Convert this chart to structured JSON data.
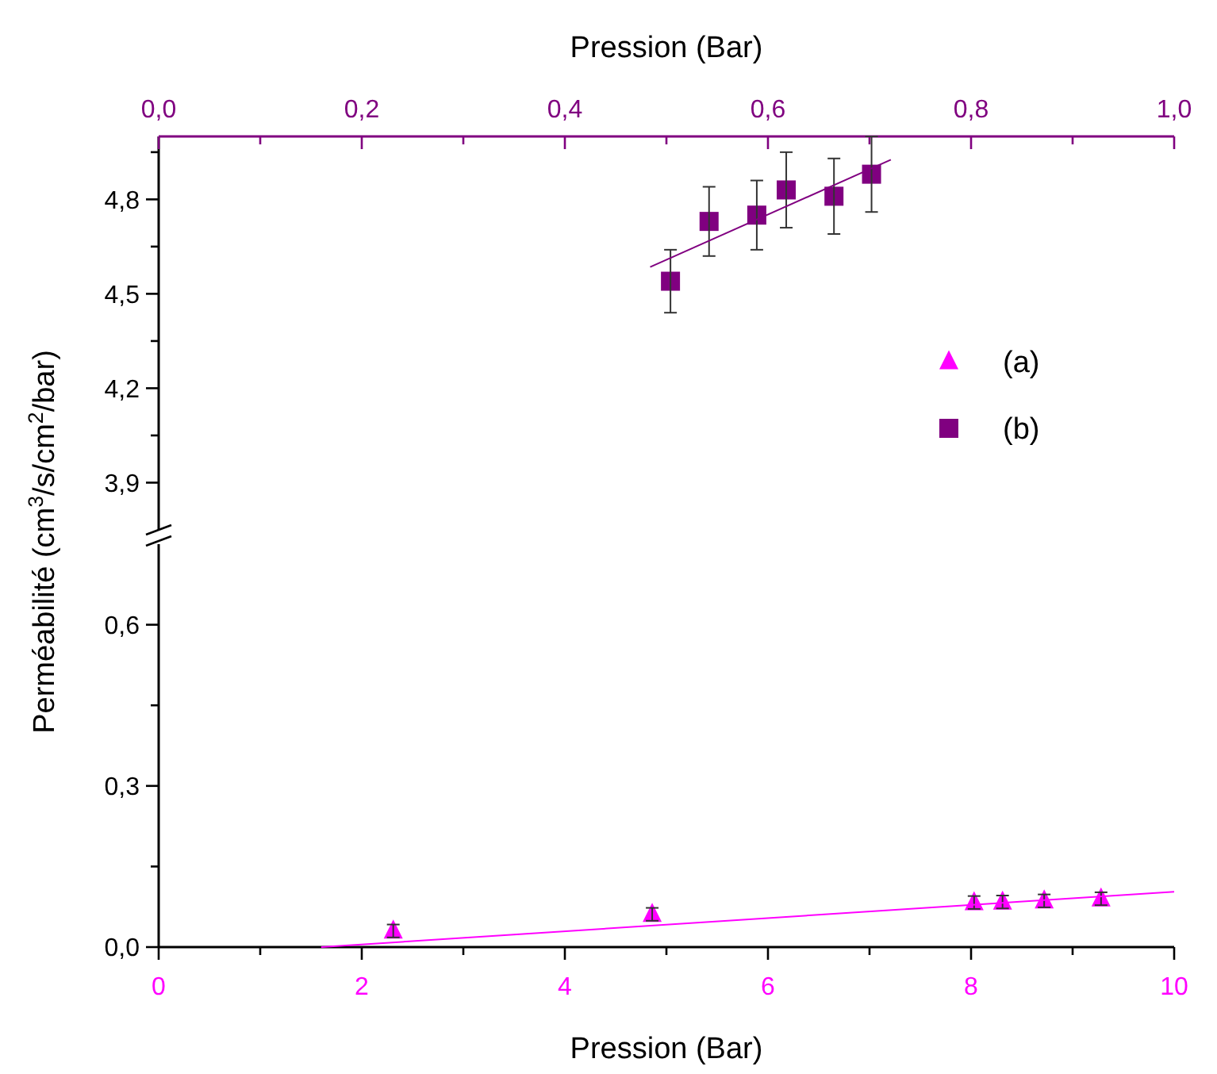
{
  "chart_data": [
    {
      "type": "scatter",
      "xlabel": "Pression (Bar)",
      "ylabel": "Perméabilité (cm$^{3}$/s/cm$^{2}$/bar)",
      "legend": "right",
      "xlim": [
        0,
        1
      ],
      "xticks": [
        {
          "value": 0,
          "label": "0,0"
        },
        {
          "value": 0.1,
          "label": null
        },
        {
          "value": 0.2,
          "label": "0,2"
        },
        {
          "value": 0.3,
          "label": null
        },
        {
          "value": 0.4,
          "label": "0,4"
        },
        {
          "value": 0.5,
          "label": null
        },
        {
          "value": 0.6,
          "label": "0,6"
        },
        {
          "value": 0.7,
          "label": null
        },
        {
          "value": 0.8,
          "label": "0,8"
        },
        {
          "value": 0.9,
          "label": null
        },
        {
          "value": 1,
          "label": "1,0"
        }
      ],
      "ylim": [
        3.75,
        5.0
      ],
      "yticks": [
        {
          "value": 3.9,
          "label": "3,9"
        },
        {
          "value": 4.05,
          "label": null
        },
        {
          "value": 4.2,
          "label": "4,2"
        },
        {
          "value": 4.35,
          "label": null
        },
        {
          "value": 4.5,
          "label": "4,5"
        },
        {
          "value": 4.65,
          "label": null
        },
        {
          "value": 4.8,
          "label": "4,8"
        },
        {
          "value": 4.95,
          "label": null
        }
      ],
      "series": [
        {
          "name": "(b)",
          "type": "scatter",
          "marker": "square",
          "color": "#800080",
          "x": [
            0.504,
            0.542,
            0.589,
            0.618,
            0.665,
            0.702
          ],
          "values": [
            4.54,
            4.73,
            4.75,
            4.83,
            4.81,
            4.88
          ],
          "errors": [
            0.1,
            0.11,
            0.11,
            0.12,
            0.12,
            0.12
          ]
        },
        {
          "type": "line",
          "color": "#800080",
          "x": [
            0.484,
            0.721
          ],
          "values": [
            4.585,
            4.926
          ]
        }
      ]
    },
    {
      "type": "scatter",
      "xlabel": "Pression (Bar)",
      "xlim": [
        0,
        10
      ],
      "xticks": [
        0,
        {
          "value": 1,
          "label": null
        },
        2,
        {
          "value": 3,
          "label": null
        },
        4,
        {
          "value": 5,
          "label": null
        },
        6,
        {
          "value": 7,
          "label": null
        },
        8,
        {
          "value": 9,
          "label": null
        },
        10
      ],
      "ylim": [
        0,
        0.75
      ],
      "yticks": [
        {
          "value": 0,
          "label": "0,0"
        },
        {
          "value": 0.15,
          "label": null
        },
        {
          "value": 0.3,
          "label": "0,3"
        },
        {
          "value": 0.45,
          "label": null
        },
        {
          "value": 0.6,
          "label": "0,6"
        }
      ],
      "series": [
        {
          "name": "(a)",
          "type": "scatter",
          "marker": "triangle",
          "color": "#ff00ff",
          "x": [
            2.31,
            4.86,
            8.03,
            8.31,
            8.72,
            9.28
          ],
          "values": [
            0.03,
            0.061,
            0.083,
            0.084,
            0.086,
            0.09
          ],
          "errors": [
            0.012,
            0.012,
            0.012,
            0.012,
            0.012,
            0.012
          ]
        },
        {
          "type": "line",
          "color": "#ff00ff",
          "x": [
            1.6,
            10
          ],
          "values": [
            0,
            0.103
          ]
        }
      ]
    }
  ]
}
